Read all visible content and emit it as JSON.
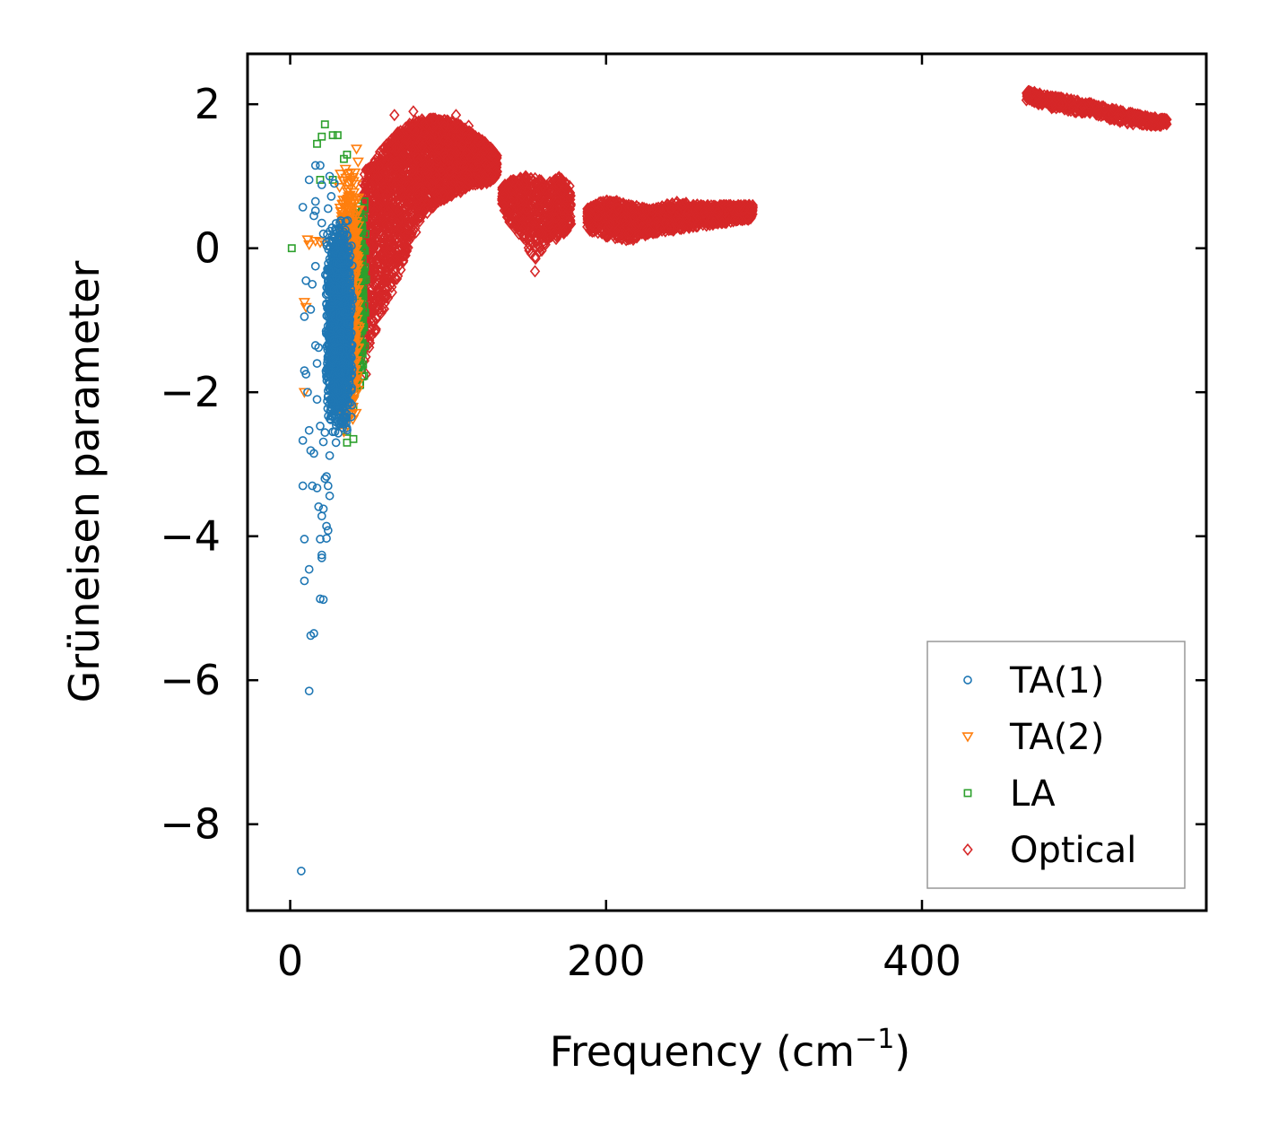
{
  "chart_data": {
    "type": "scatter",
    "title": "",
    "xlabel": "Frequency (cm",
    "xlabel_sup": "−1",
    "xlabel_close": ")",
    "ylabel": "Grüneisen parameter",
    "xlim": [
      -27,
      580
    ],
    "ylim": [
      -9.2,
      2.7
    ],
    "xticks": [
      0,
      200,
      400
    ],
    "xtick_labels": [
      "0",
      "200",
      "400"
    ],
    "yticks": [
      2,
      0,
      -2,
      -4,
      -6,
      -8
    ],
    "ytick_labels": [
      "2",
      "0",
      "−2",
      "−4",
      "−6",
      "−8"
    ],
    "legend_position": "lower-right",
    "series": [
      {
        "name": "TA(1)",
        "label": "TA(1)",
        "marker": "circle",
        "color": "#1f77b4",
        "points": [
          [
            7,
            -8.65
          ],
          [
            12,
            -6.15
          ],
          [
            13,
            -5.38
          ],
          [
            15,
            -5.35
          ],
          [
            21,
            -4.88
          ],
          [
            19,
            -4.87
          ],
          [
            9,
            -4.62
          ],
          [
            12,
            -4.46
          ],
          [
            20,
            -4.3
          ],
          [
            20,
            -4.26
          ],
          [
            9,
            -4.04
          ],
          [
            19,
            -4.04
          ],
          [
            23,
            -4.03
          ],
          [
            24,
            -3.92
          ],
          [
            23,
            -3.86
          ],
          [
            20,
            -3.72
          ],
          [
            21,
            -3.62
          ],
          [
            18,
            -3.59
          ],
          [
            25,
            -3.44
          ],
          [
            8,
            -3.3
          ],
          [
            14,
            -3.3
          ],
          [
            17,
            -3.33
          ],
          [
            24,
            -3.3
          ],
          [
            22,
            -3.2
          ],
          [
            23,
            -3.17
          ],
          [
            15,
            -2.85
          ],
          [
            13,
            -2.81
          ],
          [
            25,
            -2.88
          ],
          [
            8,
            -2.67
          ],
          [
            21,
            -2.69
          ],
          [
            29,
            -2.7
          ],
          [
            12,
            -2.53
          ],
          [
            22,
            -2.56
          ],
          [
            27,
            -2.55
          ],
          [
            19,
            -2.47
          ],
          [
            11,
            -2.0
          ],
          [
            17,
            -2.1
          ],
          [
            10,
            -1.75
          ],
          [
            9,
            -1.7
          ],
          [
            17,
            -1.6
          ],
          [
            16,
            -1.35
          ],
          [
            18,
            -1.38
          ],
          [
            9,
            -0.95
          ],
          [
            13,
            -0.85
          ],
          [
            10,
            -0.45
          ],
          [
            14,
            -0.5
          ],
          [
            16,
            -0.25
          ],
          [
            8,
            0.57
          ],
          [
            15,
            0.45
          ],
          [
            16,
            0.65
          ],
          [
            16,
            0.52
          ],
          [
            12,
            0.95
          ],
          [
            16,
            1.15
          ],
          [
            19,
            1.15
          ],
          [
            20,
            0.88
          ],
          [
            25,
            1.0
          ],
          [
            28,
            0.9
          ],
          [
            26,
            0.72
          ],
          [
            24,
            0.55
          ],
          [
            20,
            0.35
          ],
          [
            21,
            0.2
          ],
          [
            23,
            0.08
          ]
        ],
        "dense_region": {
          "x_range": [
            22,
            40
          ],
          "y_range": [
            -2.6,
            0.4
          ],
          "count": 1400
        }
      },
      {
        "name": "TA(2)",
        "label": "TA(2)",
        "marker": "triangle-down",
        "color": "#ff7f0e",
        "points": [
          [
            11,
            0.12
          ],
          [
            12,
            0.05
          ],
          [
            16,
            0.1
          ],
          [
            19,
            0.08
          ],
          [
            22,
            0.05
          ],
          [
            9,
            -0.75
          ],
          [
            10,
            -0.82
          ],
          [
            9,
            -2.0
          ],
          [
            34,
            -2.55
          ],
          [
            37,
            -2.35
          ],
          [
            38,
            -2.1
          ],
          [
            40,
            -1.95
          ],
          [
            40,
            -1.6
          ],
          [
            41,
            -1.2
          ],
          [
            42,
            -0.6
          ],
          [
            42,
            0.1
          ],
          [
            41,
            0.7
          ],
          [
            41,
            1.05
          ],
          [
            42,
            1.38
          ],
          [
            43,
            1.2
          ],
          [
            37,
            0.82
          ],
          [
            35,
            1.1
          ],
          [
            39,
            0.95
          ]
        ],
        "dense_region": {
          "x_range": [
            30,
            44
          ],
          "y_range": [
            -2.5,
            1.1
          ],
          "count": 700
        }
      },
      {
        "name": "LA",
        "label": "LA",
        "marker": "square",
        "color": "#2ca02c",
        "points": [
          [
            1,
            0.0
          ],
          [
            17,
            1.45
          ],
          [
            20,
            1.55
          ],
          [
            22,
            1.72
          ],
          [
            27,
            1.57
          ],
          [
            30,
            1.57
          ],
          [
            19,
            0.95
          ],
          [
            27,
            0.95
          ],
          [
            34,
            1.24
          ],
          [
            36,
            1.3
          ],
          [
            47,
            0.65
          ],
          [
            47,
            0.55
          ],
          [
            45,
            0.3
          ],
          [
            46,
            -0.3
          ],
          [
            45,
            -0.9
          ],
          [
            45,
            -1.5
          ],
          [
            42,
            -1.85
          ],
          [
            41,
            -2.0
          ],
          [
            40,
            -2.2
          ],
          [
            36,
            -2.55
          ],
          [
            36,
            -2.7
          ],
          [
            40,
            -2.65
          ]
        ],
        "dense_region": {
          "x_range": [
            38,
            48
          ],
          "y_range": [
            -2.0,
            0.7
          ],
          "count": 350
        }
      },
      {
        "name": "Optical",
        "label": "Optical",
        "marker": "diamond",
        "color": "#d62728",
        "points": [
          [
            155,
            -0.32
          ],
          [
            66,
            1.85
          ],
          [
            78,
            1.9
          ],
          [
            91,
            1.8
          ],
          [
            105,
            1.85
          ],
          [
            113,
            1.7
          ],
          [
            48,
            -1.75
          ],
          [
            52,
            -1.2
          ],
          [
            58,
            -0.85
          ],
          [
            70,
            -0.3
          ]
        ],
        "bands": [
          {
            "x": [
              45,
              55,
              65,
              75,
              85,
              95,
              105,
              115,
              125,
              131
            ],
            "y_low": [
              -1.7,
              -1.1,
              -0.6,
              0.0,
              0.45,
              0.65,
              0.75,
              0.85,
              0.9,
              1.0
            ],
            "y_high": [
              1.0,
              1.3,
              1.55,
              1.75,
              1.8,
              1.8,
              1.75,
              1.6,
              1.45,
              1.3
            ],
            "count": 2600
          },
          {
            "x": [
              134,
              140,
              148,
              155,
              162,
              170,
              178
            ],
            "y_low": [
              0.6,
              0.3,
              0.1,
              -0.2,
              0.05,
              0.1,
              0.3
            ],
            "y_high": [
              0.85,
              0.95,
              1.0,
              1.0,
              0.9,
              1.0,
              0.85
            ],
            "count": 650
          },
          {
            "x": [
              188,
              200,
              215,
              230,
              245,
              260,
              275,
              293
            ],
            "y_low": [
              0.25,
              0.15,
              0.1,
              0.2,
              0.25,
              0.3,
              0.35,
              0.4
            ],
            "y_high": [
              0.55,
              0.7,
              0.6,
              0.55,
              0.65,
              0.6,
              0.6,
              0.6
            ],
            "count": 1300
          },
          {
            "x": [
              466,
              480,
              495,
              510,
              525,
              540,
              555
            ],
            "y_low": [
              2.05,
              1.95,
              1.9,
              1.85,
              1.75,
              1.7,
              1.7
            ],
            "y_high": [
              2.2,
              2.12,
              2.07,
              2.0,
              1.92,
              1.85,
              1.8
            ],
            "count": 550
          }
        ]
      }
    ]
  }
}
